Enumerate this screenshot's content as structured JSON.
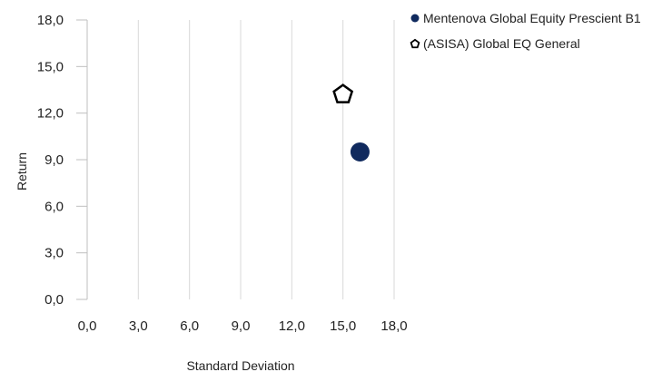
{
  "chart_data": {
    "type": "scatter",
    "xlabel": "Standard Deviation",
    "ylabel": "Return",
    "xlim": [
      0,
      18
    ],
    "ylim": [
      0,
      18
    ],
    "x_ticks": [
      "0,0",
      "3,0",
      "6,0",
      "9,0",
      "12,0",
      "15,0",
      "18,0"
    ],
    "y_ticks": [
      "0,0",
      "3,0",
      "6,0",
      "9,0",
      "12,0",
      "15,0",
      "18,0"
    ],
    "grid": "vertical",
    "legend_position": "top-right",
    "series": [
      {
        "name": "Mentenova Global Equity Prescient B1",
        "marker": "circle",
        "color": "#102a5e",
        "x": [
          16.0
        ],
        "y": [
          9.5
        ]
      },
      {
        "name": "(ASISA) Global EQ General",
        "marker": "pentagon",
        "color": "#000000",
        "x": [
          15.0
        ],
        "y": [
          13.2
        ]
      }
    ]
  }
}
